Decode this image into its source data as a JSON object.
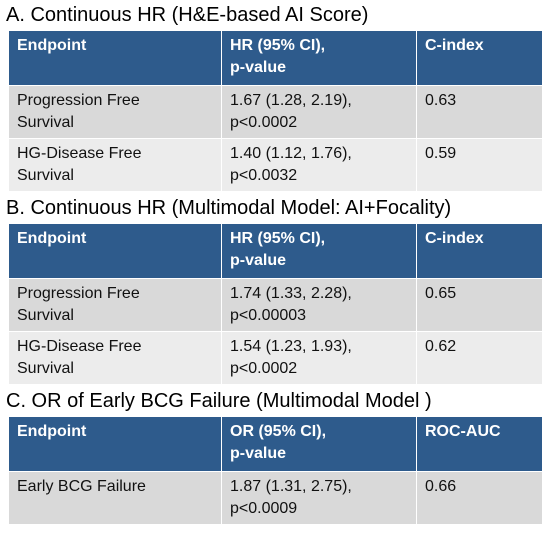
{
  "sections": [
    {
      "title": "A. Continuous HR (H&E-based AI Score)",
      "header": [
        [
          "Endpoint"
        ],
        [
          "HR (95% CI),",
          "p-value"
        ],
        [
          "C-index"
        ]
      ],
      "rows": [
        [
          [
            "Progression Free",
            "Survival"
          ],
          [
            "1.67 (1.28, 2.19),",
            "p<0.0002"
          ],
          [
            "0.63"
          ]
        ],
        [
          [
            "HG-Disease Free",
            "Survival"
          ],
          [
            "1.40 (1.12, 1.76),",
            "p<0.0032"
          ],
          [
            "0.59"
          ]
        ]
      ]
    },
    {
      "title": "B. Continuous HR (Multimodal Model: AI+Focality)",
      "header": [
        [
          "Endpoint"
        ],
        [
          "HR (95% CI),",
          "p-value"
        ],
        [
          "C-index"
        ]
      ],
      "rows": [
        [
          [
            "Progression Free",
            "Survival"
          ],
          [
            "1.74 (1.33, 2.28),",
            "p<0.00003"
          ],
          [
            "0.65"
          ]
        ],
        [
          [
            "HG-Disease Free",
            "Survival"
          ],
          [
            "1.54 (1.23, 1.93),",
            "p<0.0002"
          ],
          [
            "0.62"
          ]
        ]
      ]
    },
    {
      "title": "C. OR of Early BCG Failure (Multimodal Model )",
      "header": [
        [
          "Endpoint"
        ],
        [
          "OR (95% CI),",
          "p-value"
        ],
        [
          "ROC-AUC"
        ]
      ],
      "rows": [
        [
          [
            "Early BCG Failure"
          ],
          [
            "1.87 (1.31, 2.75),",
            "p<0.0009"
          ],
          [
            "0.66"
          ]
        ]
      ]
    }
  ]
}
